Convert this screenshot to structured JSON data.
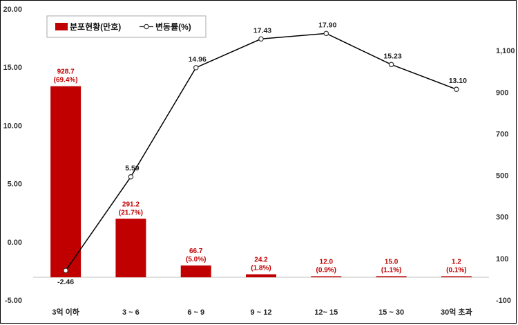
{
  "chart_data": {
    "type": "bar",
    "categories": [
      "3억 이하",
      "3 ~ 6",
      "6 ~ 9",
      "9 ~ 12",
      "12~ 15",
      "15 ~ 30",
      "30억 초과"
    ],
    "series": [
      {
        "name": "분포현황(만호)",
        "kind": "bar",
        "axis": "right",
        "values": [
          928.7,
          291.2,
          66.7,
          24.2,
          12.0,
          15.0,
          1.2
        ],
        "labels": [
          "928.7",
          "291.2",
          "66.7",
          "24.2",
          "12.0",
          "15.0",
          "1.2"
        ],
        "pct_labels": [
          "(69.4%)",
          "(21.7%)",
          "(5.0%)",
          "(1.8%)",
          "(0.9%)",
          "(1.1%)",
          "(0.1%)"
        ],
        "color": "#c00000"
      },
      {
        "name": "변동률(%)",
        "kind": "line",
        "axis": "left",
        "values": [
          -2.46,
          5.59,
          14.96,
          17.43,
          17.9,
          15.23,
          13.1
        ],
        "labels": [
          "-2.46",
          "5.59",
          "14.96",
          "17.43",
          "17.90",
          "15.23",
          "13.10"
        ],
        "color": "#000000"
      }
    ],
    "y_left": {
      "ylim": [
        -5,
        20
      ],
      "ticks": [
        "20.00",
        "15.00",
        "10.00",
        "5.00",
        "0.00",
        "-5.00"
      ]
    },
    "y_right": {
      "ylim": [
        -100,
        1300
      ],
      "ticks": [
        "1,100",
        "900",
        "700",
        "500",
        "300",
        "100",
        "-100"
      ]
    },
    "legend_position": "top-left",
    "grid": false
  }
}
